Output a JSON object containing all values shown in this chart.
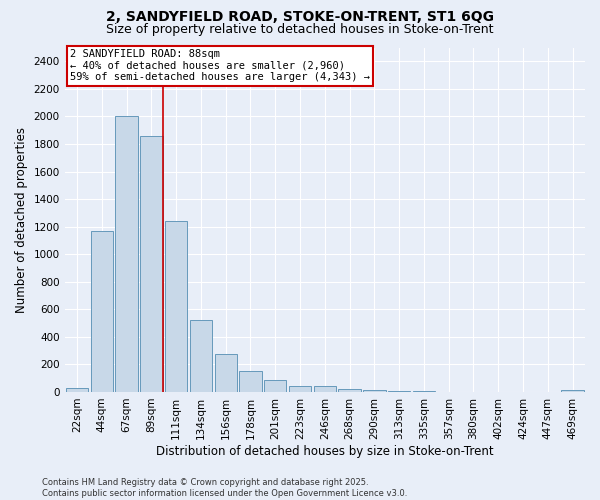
{
  "title_line1": "2, SANDYFIELD ROAD, STOKE-ON-TRENT, ST1 6QG",
  "title_line2": "Size of property relative to detached houses in Stoke-on-Trent",
  "xlabel": "Distribution of detached houses by size in Stoke-on-Trent",
  "ylabel": "Number of detached properties",
  "footer_line1": "Contains HM Land Registry data © Crown copyright and database right 2025.",
  "footer_line2": "Contains public sector information licensed under the Open Government Licence v3.0.",
  "categories": [
    "22sqm",
    "44sqm",
    "67sqm",
    "89sqm",
    "111sqm",
    "134sqm",
    "156sqm",
    "178sqm",
    "201sqm",
    "223sqm",
    "246sqm",
    "268sqm",
    "290sqm",
    "313sqm",
    "335sqm",
    "357sqm",
    "380sqm",
    "402sqm",
    "424sqm",
    "447sqm",
    "469sqm"
  ],
  "values": [
    30,
    1170,
    2000,
    1860,
    1240,
    520,
    275,
    150,
    90,
    42,
    42,
    18,
    15,
    8,
    4,
    3,
    2,
    2,
    1,
    1,
    15
  ],
  "bar_color": "#c8d8e8",
  "bar_edge_color": "#6699bb",
  "bar_edge_width": 0.7,
  "vline_x_index": 3,
  "vline_color": "#cc0000",
  "annotation_text": "2 SANDYFIELD ROAD: 88sqm\n← 40% of detached houses are smaller (2,960)\n59% of semi-detached houses are larger (4,343) →",
  "annotation_box_color": "#ffffff",
  "annotation_box_edge_color": "#cc0000",
  "ylim": [
    0,
    2500
  ],
  "yticks": [
    0,
    200,
    400,
    600,
    800,
    1000,
    1200,
    1400,
    1600,
    1800,
    2000,
    2200,
    2400
  ],
  "bg_color": "#e8eef8",
  "grid_color": "#ffffff",
  "title_fontsize": 10,
  "subtitle_fontsize": 9,
  "axis_label_fontsize": 8.5,
  "tick_fontsize": 7.5,
  "footer_fontsize": 6,
  "annotation_fontsize": 7.5
}
